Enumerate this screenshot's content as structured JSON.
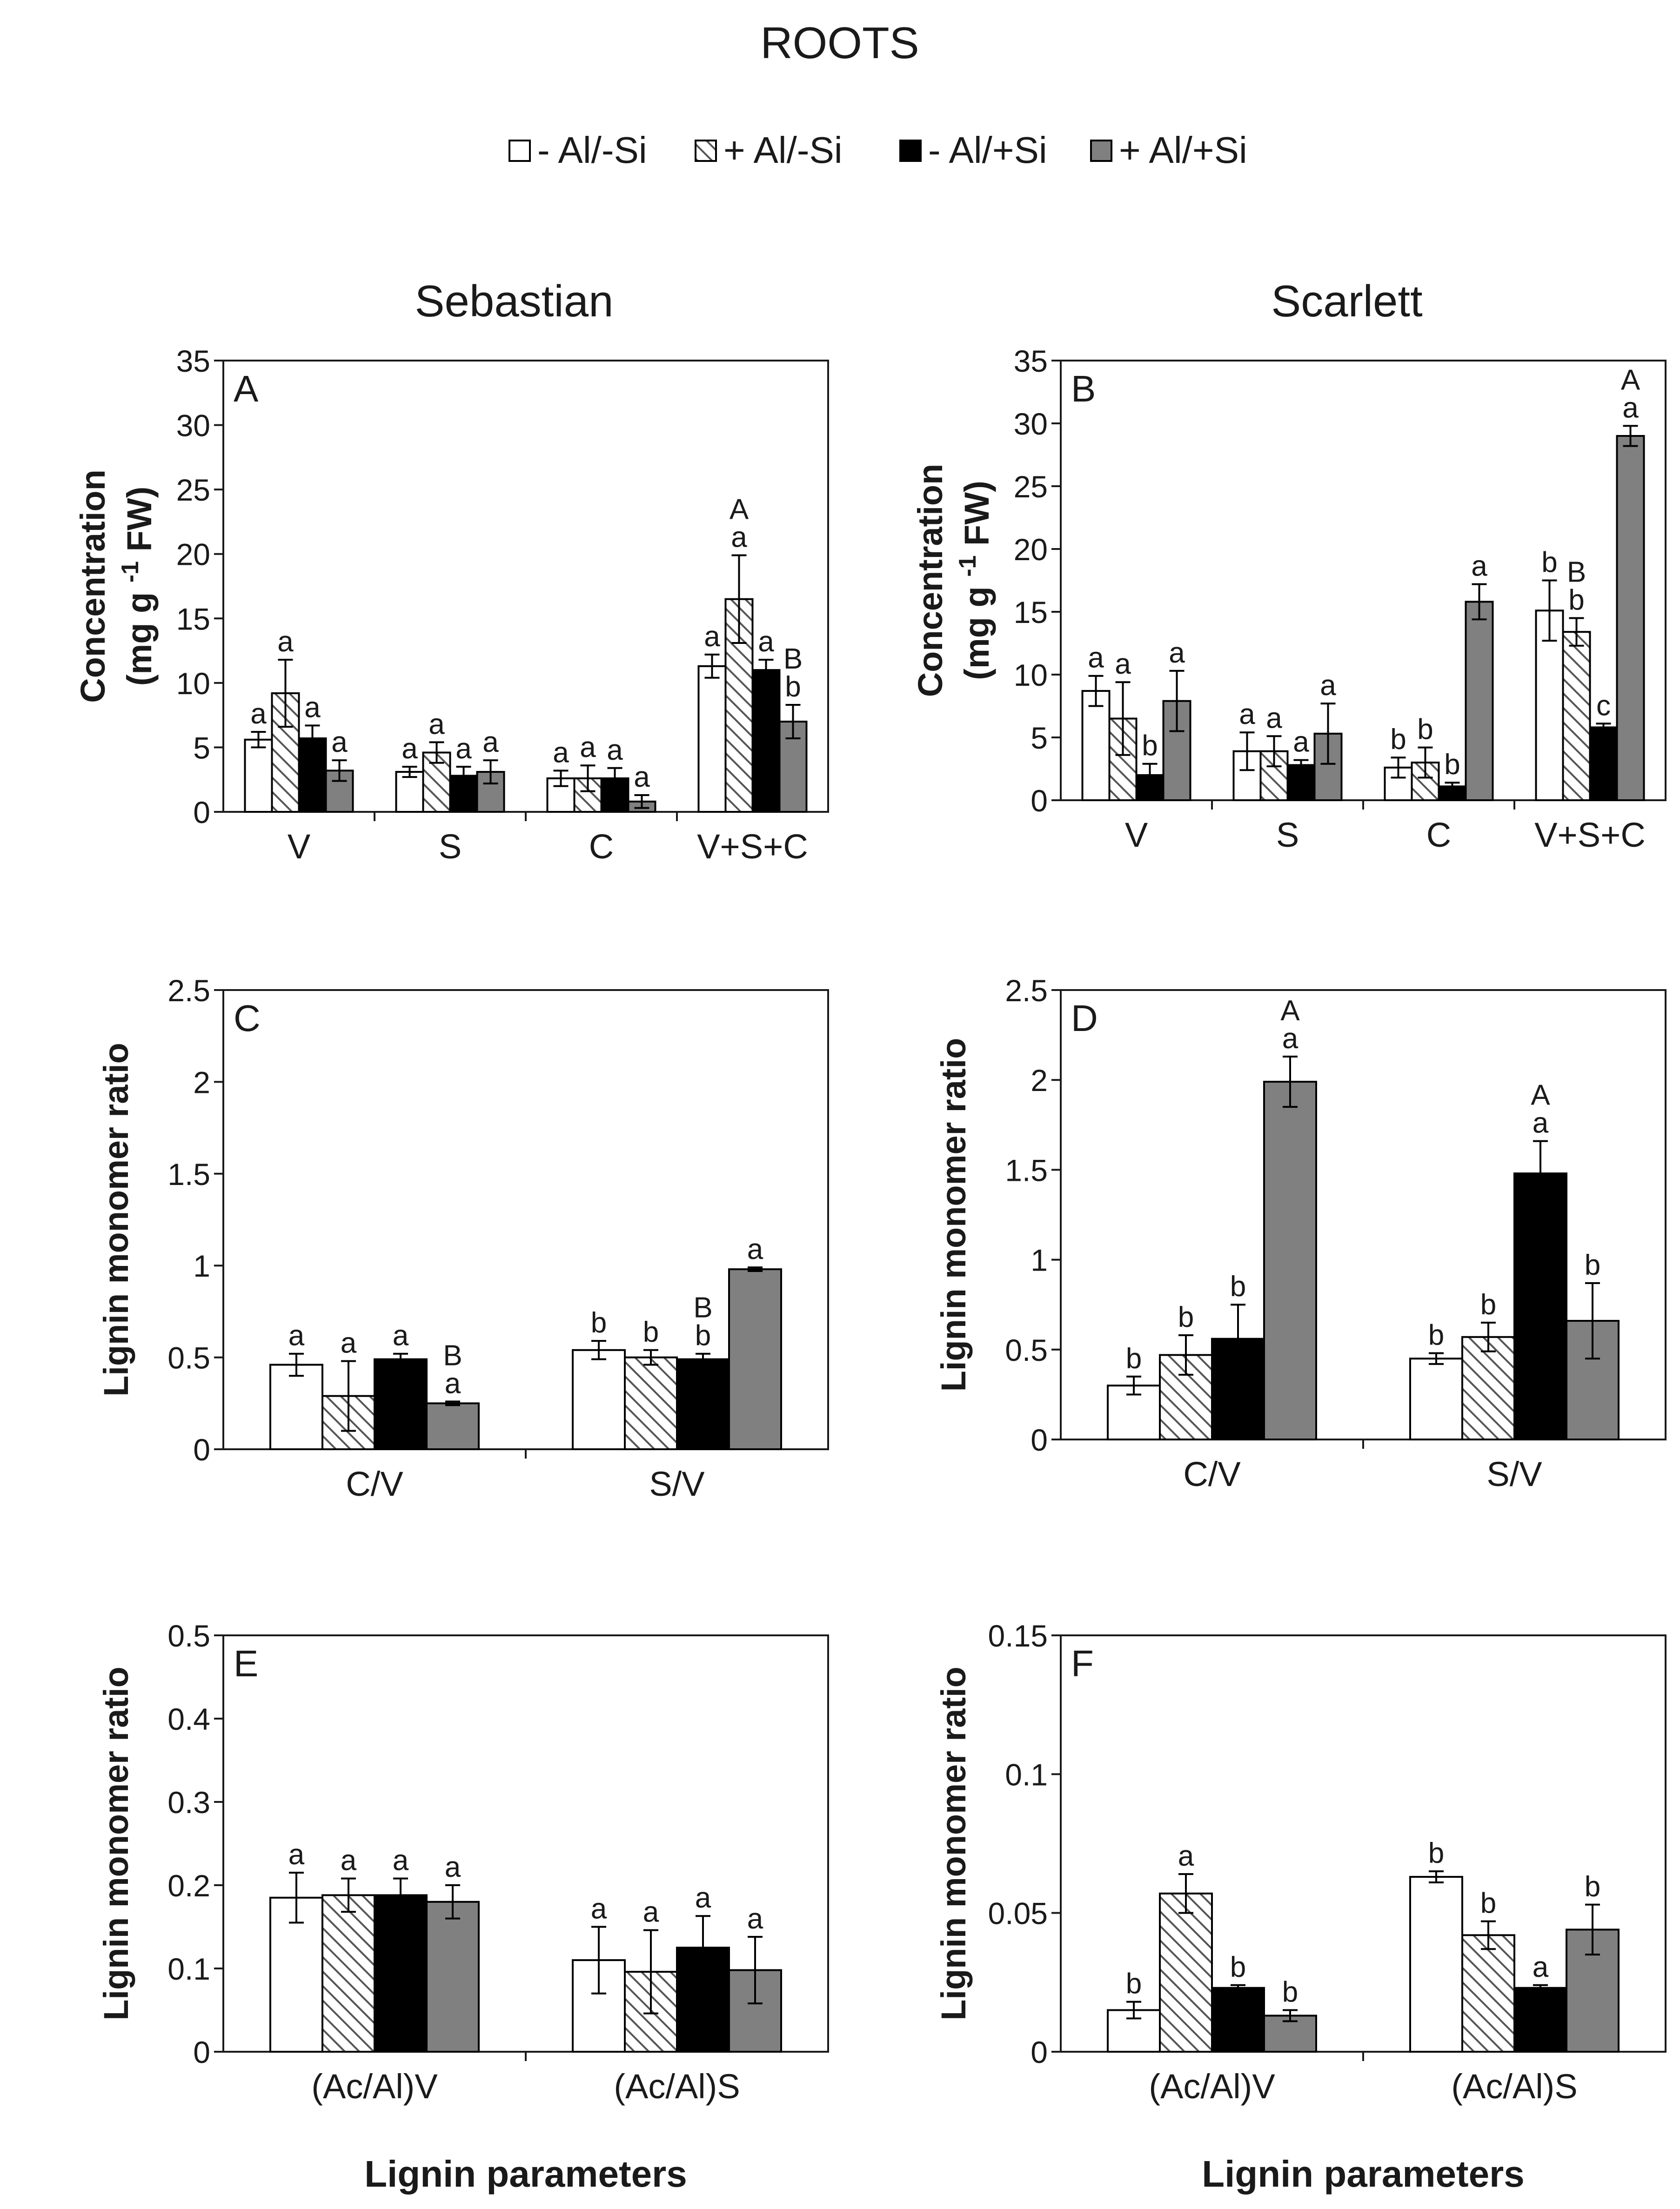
{
  "title": "ROOTS",
  "legend": [
    {
      "name": "- Al/-Si",
      "fill": "#ffffff",
      "pattern": false
    },
    {
      "name": "+ Al/-Si",
      "fill": "hatch",
      "pattern": true
    },
    {
      "name": "- Al/+Si",
      "fill": "#000000",
      "pattern": false
    },
    {
      "name": "+ Al/+Si",
      "fill": "#808080",
      "pattern": false
    }
  ],
  "columns": [
    "Sebastian",
    "Scarlett"
  ],
  "x_axis_label": "Lignin parameters",
  "chart_data": [
    {
      "panel": "A",
      "type": "bar",
      "cultivar": "Sebastian",
      "ylabel": [
        "Concentration",
        "(mg g ",
        "-1",
        " FW)"
      ],
      "ylim": [
        0,
        35
      ],
      "yticks": [
        0,
        5,
        10,
        15,
        20,
        25,
        30,
        35
      ],
      "ytick_labels": [
        "0",
        "5",
        "10",
        "15",
        "20",
        "25",
        "30",
        "35"
      ],
      "categories": [
        "V",
        "S",
        "C",
        "V+S+C"
      ],
      "series": [
        {
          "name": "- Al/-Si",
          "values": [
            5.6,
            3.1,
            2.6,
            11.3
          ],
          "errors": [
            0.6,
            0.4,
            0.6,
            0.9
          ],
          "labels": [
            [
              "a"
            ],
            [
              "a"
            ],
            [
              "a"
            ],
            [
              "a"
            ]
          ]
        },
        {
          "name": "+ Al/-Si",
          "values": [
            9.2,
            4.6,
            2.6,
            16.5
          ],
          "errors": [
            2.6,
            0.8,
            1.0,
            3.4
          ],
          "labels": [
            [
              "a"
            ],
            [
              "a"
            ],
            [
              "a"
            ],
            [
              "A",
              "a"
            ]
          ]
        },
        {
          "name": "- Al/+Si",
          "values": [
            5.7,
            2.8,
            2.6,
            11.0
          ],
          "errors": [
            1.0,
            0.7,
            0.8,
            0.8
          ],
          "labels": [
            [
              "a"
            ],
            [
              "a"
            ],
            [
              "a"
            ],
            [
              "a"
            ]
          ]
        },
        {
          "name": "+ Al/+Si",
          "values": [
            3.2,
            3.1,
            0.8,
            7.0
          ],
          "errors": [
            0.8,
            0.9,
            0.5,
            1.3
          ],
          "labels": [
            [
              "a"
            ],
            [
              "a"
            ],
            [
              "a"
            ],
            [
              "B",
              "b"
            ]
          ]
        }
      ]
    },
    {
      "panel": "B",
      "type": "bar",
      "cultivar": "Scarlett",
      "ylabel": [
        "Concentration",
        "(mg g ",
        "-1",
        " FW)"
      ],
      "ylim": [
        0,
        35
      ],
      "yticks": [
        0,
        5,
        10,
        15,
        20,
        25,
        30,
        35
      ],
      "ytick_labels": [
        "0",
        "5",
        "10",
        "15",
        "20",
        "25",
        "30",
        "35"
      ],
      "categories": [
        "V",
        "S",
        "C",
        "V+S+C"
      ],
      "series": [
        {
          "name": "- Al/-Si",
          "values": [
            8.7,
            3.9,
            2.6,
            15.1
          ],
          "errors": [
            1.2,
            1.5,
            0.8,
            2.4
          ],
          "labels": [
            [
              "a"
            ],
            [
              "a"
            ],
            [
              "b"
            ],
            [
              "b"
            ]
          ]
        },
        {
          "name": "+ Al/-Si",
          "values": [
            6.5,
            3.9,
            3.0,
            13.4
          ],
          "errors": [
            2.9,
            1.2,
            1.2,
            1.1
          ],
          "labels": [
            [
              "a"
            ],
            [
              "a"
            ],
            [
              "b"
            ],
            [
              "B",
              "b"
            ]
          ]
        },
        {
          "name": "- Al/+Si",
          "values": [
            2.0,
            2.8,
            1.1,
            5.8
          ],
          "errors": [
            0.9,
            0.4,
            0.3,
            0.3
          ],
          "labels": [
            [
              "b"
            ],
            [
              "a"
            ],
            [
              "b"
            ],
            [
              "c"
            ]
          ]
        },
        {
          "name": "+ Al/+Si",
          "values": [
            7.9,
            5.3,
            15.8,
            29.0
          ],
          "errors": [
            2.4,
            2.4,
            1.4,
            0.8
          ],
          "labels": [
            [
              "a"
            ],
            [
              "a"
            ],
            [
              "a"
            ],
            [
              "A",
              "a"
            ]
          ]
        }
      ]
    },
    {
      "panel": "C",
      "type": "bar",
      "cultivar": "Sebastian",
      "ylabel": [
        "Lignin monomer ratio"
      ],
      "ylim": [
        0,
        2.5
      ],
      "yticks": [
        0,
        0.5,
        1,
        1.5,
        2,
        2.5
      ],
      "ytick_labels": [
        "0",
        "0.5",
        "1",
        "1.5",
        "2",
        "2.5"
      ],
      "categories": [
        "C/V",
        "S/V"
      ],
      "series": [
        {
          "name": "- Al/-Si",
          "values": [
            0.46,
            0.54
          ],
          "errors": [
            0.06,
            0.05
          ],
          "labels": [
            [
              "a"
            ],
            [
              "b"
            ]
          ]
        },
        {
          "name": "+ Al/-Si",
          "values": [
            0.29,
            0.5
          ],
          "errors": [
            0.19,
            0.04
          ],
          "labels": [
            [
              "a"
            ],
            [
              "b"
            ]
          ]
        },
        {
          "name": "- Al/+Si",
          "values": [
            0.49,
            0.49
          ],
          "errors": [
            0.03,
            0.03
          ],
          "labels": [
            [
              "a"
            ],
            [
              "B",
              "b"
            ]
          ]
        },
        {
          "name": "+ Al/+Si",
          "values": [
            0.25,
            0.98
          ],
          "errors": [
            0.01,
            0.01
          ],
          "labels": [
            [
              "B",
              "a"
            ],
            [
              "a"
            ]
          ]
        }
      ]
    },
    {
      "panel": "D",
      "type": "bar",
      "cultivar": "Scarlett",
      "ylabel": [
        "Lignin monomer ratio"
      ],
      "ylim": [
        0,
        2.5
      ],
      "yticks": [
        0,
        0.5,
        1,
        1.5,
        2,
        2.5
      ],
      "ytick_labels": [
        "0",
        "0.5",
        "1",
        "1.5",
        "2",
        "2.5"
      ],
      "categories": [
        "C/V",
        "S/V"
      ],
      "series": [
        {
          "name": "- Al/-Si",
          "values": [
            0.3,
            0.45
          ],
          "errors": [
            0.05,
            0.03
          ],
          "labels": [
            [
              "b"
            ],
            [
              "b"
            ]
          ]
        },
        {
          "name": "+ Al/-Si",
          "values": [
            0.47,
            0.57
          ],
          "errors": [
            0.11,
            0.08
          ],
          "labels": [
            [
              "b"
            ],
            [
              "b"
            ]
          ]
        },
        {
          "name": "- Al/+Si",
          "values": [
            0.56,
            1.48
          ],
          "errors": [
            0.19,
            0.18
          ],
          "labels": [
            [
              "b"
            ],
            [
              "A",
              "a"
            ]
          ]
        },
        {
          "name": "+ Al/+Si",
          "values": [
            1.99,
            0.66
          ],
          "errors": [
            0.14,
            0.21
          ],
          "labels": [
            [
              "A",
              "a"
            ],
            [
              "b"
            ]
          ]
        }
      ]
    },
    {
      "panel": "E",
      "type": "bar",
      "cultivar": "Sebastian",
      "ylabel": [
        "Lignin monomer ratio"
      ],
      "ylim": [
        0,
        0.5
      ],
      "yticks": [
        0,
        0.1,
        0.2,
        0.3,
        0.4,
        0.5
      ],
      "ytick_labels": [
        "0",
        "0.1",
        "0.2",
        "0.3",
        "0.4",
        "0.5"
      ],
      "categories": [
        "(Ac/Al)V",
        "(Ac/Al)S"
      ],
      "xlabel": "Lignin parameters",
      "series": [
        {
          "name": "- Al/-Si",
          "values": [
            0.185,
            0.11
          ],
          "errors": [
            0.03,
            0.04
          ],
          "labels": [
            [
              "a"
            ],
            [
              "a"
            ]
          ]
        },
        {
          "name": "+ Al/-Si",
          "values": [
            0.188,
            0.096
          ],
          "errors": [
            0.02,
            0.05
          ],
          "labels": [
            [
              "a"
            ],
            [
              "a"
            ]
          ]
        },
        {
          "name": "- Al/+Si",
          "values": [
            0.188,
            0.125
          ],
          "errors": [
            0.02,
            0.038
          ],
          "labels": [
            [
              "a"
            ],
            [
              "a"
            ]
          ]
        },
        {
          "name": "+ Al/+Si",
          "values": [
            0.18,
            0.098
          ],
          "errors": [
            0.02,
            0.04
          ],
          "labels": [
            [
              "a"
            ],
            [
              "a"
            ]
          ]
        }
      ]
    },
    {
      "panel": "F",
      "type": "bar",
      "cultivar": "Scarlett",
      "ylabel": [
        "Lignin monomer ratio"
      ],
      "ylim": [
        0,
        0.15
      ],
      "yticks": [
        0,
        0.05,
        0.1,
        0.15
      ],
      "ytick_labels": [
        "0",
        "0.05",
        "0.1",
        "0.15"
      ],
      "categories": [
        "(Ac/Al)V",
        "(Ac/Al)S"
      ],
      "xlabel": "Lignin parameters",
      "series": [
        {
          "name": "- Al/-Si",
          "values": [
            0.015,
            0.063
          ],
          "errors": [
            0.003,
            0.002
          ],
          "labels": [
            [
              "b"
            ],
            [
              "b"
            ]
          ]
        },
        {
          "name": "+ Al/-Si",
          "values": [
            0.057,
            0.042
          ],
          "errors": [
            0.007,
            0.005
          ],
          "labels": [
            [
              "a"
            ],
            [
              "b"
            ]
          ]
        },
        {
          "name": "- Al/+Si",
          "values": [
            0.023,
            0.023
          ],
          "errors": [
            0.001,
            0.001
          ],
          "labels": [
            [
              "b"
            ],
            [
              "a"
            ]
          ]
        },
        {
          "name": "+ Al/+Si",
          "values": [
            0.013,
            0.044
          ],
          "errors": [
            0.002,
            0.009
          ],
          "labels": [
            [
              "b"
            ],
            [
              "b"
            ]
          ]
        }
      ]
    }
  ]
}
